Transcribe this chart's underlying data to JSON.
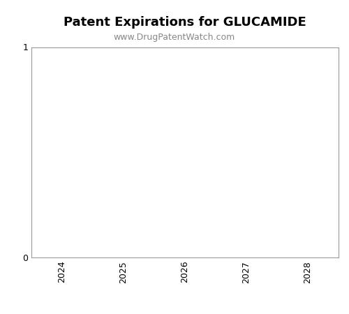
{
  "title": "Patent Expirations for GLUCAMIDE",
  "subtitle": "www.DrugPatentWatch.com",
  "title_fontsize": 13,
  "subtitle_fontsize": 9,
  "title_fontweight": "bold",
  "xlim": [
    2023.5,
    2028.5
  ],
  "ylim": [
    0,
    1
  ],
  "xticks": [
    2024,
    2025,
    2026,
    2027,
    2028
  ],
  "yticks": [
    0,
    1
  ],
  "background_color": "#ffffff",
  "plot_bg_color": "#ffffff",
  "spine_color": "#999999",
  "tick_label_color": "#000000",
  "subtitle_color": "#888888",
  "xlabel": "",
  "ylabel": ""
}
